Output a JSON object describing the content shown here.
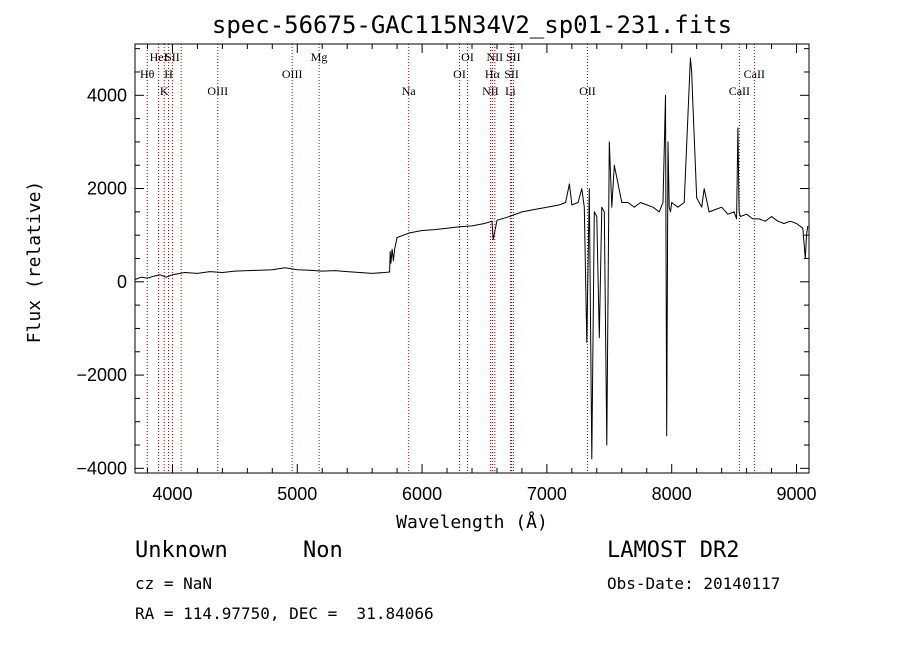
{
  "chart_data": {
    "type": "line",
    "title": "spec-56675-GAC115N34V2_sp01-231.fits",
    "xlabel": "Wavelength (Å)",
    "ylabel": "Flux (relative)",
    "xlim": [
      3700,
      9100
    ],
    "ylim": [
      -4100,
      5100
    ],
    "xticks": [
      4000,
      5000,
      6000,
      7000,
      8000,
      9000
    ],
    "xtick_labels": [
      "4000",
      "5000",
      "6000",
      "7000",
      "8000",
      "9000"
    ],
    "yticks": [
      -4000,
      -2000,
      0,
      2000,
      4000
    ],
    "ytick_labels": [
      "−4000",
      "−2000",
      "0",
      "2000",
      "4000"
    ],
    "grid": false,
    "series": [
      {
        "x": [
          3700,
          3750,
          3800,
          3850,
          3900,
          3950,
          4000,
          4100,
          4200,
          4300,
          4400,
          4500,
          4600,
          4700,
          4800,
          4900,
          5000,
          5100,
          5200,
          5300,
          5400,
          5500,
          5600,
          5700,
          5740,
          5745,
          5750,
          5760,
          5770,
          5780,
          5800,
          5850,
          5900,
          6000,
          6100,
          6200,
          6300,
          6400,
          6500,
          6560,
          6570,
          6600,
          6700,
          6800,
          6900,
          7000,
          7100,
          7150,
          7180,
          7200,
          7250,
          7280,
          7300,
          7320,
          7340,
          7360,
          7380,
          7400,
          7420,
          7440,
          7460,
          7480,
          7500,
          7520,
          7540,
          7600,
          7650,
          7700,
          7750,
          7800,
          7850,
          7900,
          7930,
          7950,
          7960,
          7970,
          7980,
          7990,
          8000,
          8050,
          8100,
          8150,
          8160,
          8170,
          8200,
          8240,
          8260,
          8300,
          8350,
          8400,
          8450,
          8500,
          8520,
          8530,
          8540,
          8550,
          8600,
          8650,
          8700,
          8750,
          8800,
          8850,
          8900,
          8950,
          9000,
          9050,
          9070,
          9080,
          9090
        ],
        "y": [
          50,
          100,
          80,
          120,
          150,
          100,
          150,
          200,
          180,
          220,
          200,
          230,
          240,
          250,
          260,
          300,
          260,
          250,
          230,
          240,
          220,
          200,
          180,
          200,
          210,
          650,
          400,
          700,
          450,
          700,
          950,
          1000,
          1050,
          1100,
          1120,
          1150,
          1180,
          1200,
          1250,
          1300,
          900,
          1320,
          1400,
          1500,
          1550,
          1600,
          1650,
          1700,
          2100,
          1650,
          1700,
          2000,
          1600,
          -1300,
          2000,
          -3800,
          1500,
          1400,
          -1200,
          1600,
          1500,
          -3500,
          3000,
          1600,
          2500,
          1700,
          1700,
          1600,
          1700,
          1650,
          1600,
          1500,
          1700,
          4000,
          -3300,
          3000,
          1600,
          1500,
          1700,
          1600,
          1700,
          4800,
          4500,
          3800,
          1800,
          1600,
          2000,
          1500,
          1550,
          1600,
          1450,
          1500,
          1350,
          3300,
          1500,
          1400,
          1450,
          1350,
          1350,
          1300,
          1400,
          1300,
          1250,
          1300,
          1250,
          1150,
          500,
          1000,
          1200
        ]
      }
    ],
    "line_markers": [
      {
        "name": "Hθ",
        "wavelength": 3798,
        "row": 2
      },
      {
        "name": "HeI",
        "wavelength": 3889,
        "row": 1
      },
      {
        "name": "K",
        "wavelength": 3934,
        "row": 3
      },
      {
        "name": "SII",
        "wavelength": 4000,
        "row": 1
      },
      {
        "name": "H",
        "wavelength": 3969,
        "row": 2
      },
      {
        "name": "",
        "wavelength": 4070,
        "row": 0
      },
      {
        "name": "OIII",
        "wavelength": 4363,
        "row": 3
      },
      {
        "name": "OIII",
        "wavelength": 4959,
        "row": 2
      },
      {
        "name": "Mg",
        "wavelength": 5175,
        "row": 1
      },
      {
        "name": "Na",
        "wavelength": 5893,
        "row": 3
      },
      {
        "name": "OI",
        "wavelength": 6300,
        "row": 2
      },
      {
        "name": "OI",
        "wavelength": 6364,
        "row": 1
      },
      {
        "name": "NII",
        "wavelength": 6548,
        "row": 3
      },
      {
        "name": "Hα",
        "wavelength": 6563,
        "row": 2
      },
      {
        "name": "NII",
        "wavelength": 6583,
        "row": 1
      },
      {
        "name": "Li",
        "wavelength": 6708,
        "row": 3
      },
      {
        "name": "SII",
        "wavelength": 6717,
        "row": 2
      },
      {
        "name": "SII",
        "wavelength": 6731,
        "row": 1
      },
      {
        "name": "OII",
        "wavelength": 7325,
        "row": 3
      },
      {
        "name": "CaII",
        "wavelength": 8542,
        "row": 3
      },
      {
        "name": "CaII",
        "wavelength": 8662,
        "row": 2
      }
    ]
  },
  "footer": {
    "object_class": "Unknown",
    "subclass": "Non",
    "survey": "LAMOST DR2",
    "redshift_text": "cz = NaN",
    "obs_date_text": "Obs-Date: 20140117",
    "coords_text": "RA = 114.97750, DEC =  31.84066"
  },
  "colors": {
    "spectrum": "#000000",
    "marker_line": "#aa0000",
    "axis": "#000000"
  }
}
